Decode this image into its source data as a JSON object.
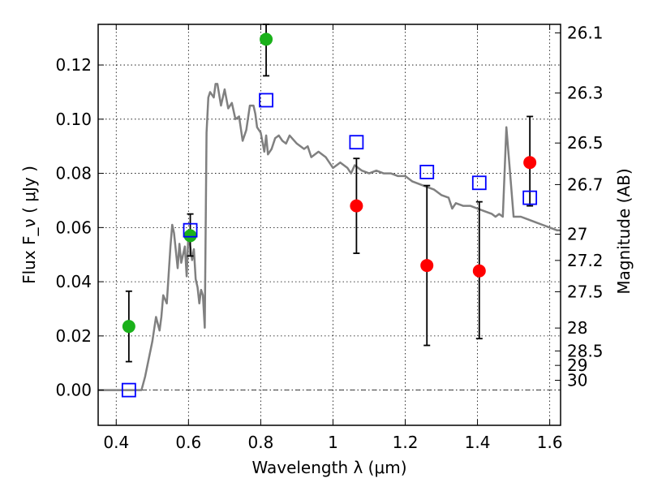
{
  "chart_data": {
    "type": "scatter",
    "title": "",
    "xlabel": "Wavelength  λ (μm)",
    "ylabel_left": "Flux  F_ν  ( μJy )",
    "ylabel_right": "Magnitude (AB)",
    "xlim": [
      0.35,
      1.63
    ],
    "ylim": [
      -0.013,
      0.135
    ],
    "x_ticks": [
      0.4,
      0.6,
      0.8,
      1.0,
      1.2,
      1.4,
      1.6
    ],
    "x_tick_labels": [
      "0.4",
      "0.6",
      "0.8",
      "1",
      "1.2",
      "1.4",
      "1.6"
    ],
    "y_ticks": [
      0.0,
      0.02,
      0.04,
      0.06,
      0.08,
      0.1,
      0.12
    ],
    "y_tick_labels": [
      "0.00",
      "0.02",
      "0.04",
      "0.06",
      "0.08",
      "0.10",
      "0.12"
    ],
    "right_ticks": [
      {
        "mag": 26.1,
        "label": "26.1"
      },
      {
        "mag": 26.3,
        "label": "26.3"
      },
      {
        "mag": 26.5,
        "label": "26.5"
      },
      {
        "mag": 26.7,
        "label": "26.7"
      },
      {
        "mag": 27.0,
        "label": "27"
      },
      {
        "mag": 27.2,
        "label": "27.2"
      },
      {
        "mag": 27.5,
        "label": "27.5"
      },
      {
        "mag": 28.0,
        "label": "28"
      },
      {
        "mag": 28.5,
        "label": "28.5"
      },
      {
        "mag": 29.0,
        "label": "29"
      },
      {
        "mag": 30.0,
        "label": "30"
      }
    ],
    "grid": true,
    "colors": {
      "model": "#808080",
      "green": "#1ab11a",
      "red": "#ff0000",
      "blue": "#0000ff",
      "errorbar": "#000000",
      "zeroline": "#000000"
    },
    "series": [
      {
        "kind": "line",
        "x": [
          0.35,
          0.47,
          0.48,
          0.5,
          0.51,
          0.52,
          0.525,
          0.53,
          0.54,
          0.55,
          0.555,
          0.56,
          0.57,
          0.575,
          0.58,
          0.59,
          0.595,
          0.6,
          0.61,
          0.615,
          0.62,
          0.625,
          0.63,
          0.635,
          0.64,
          0.645,
          0.65,
          0.655,
          0.66,
          0.67,
          0.675,
          0.68,
          0.69,
          0.7,
          0.71,
          0.72,
          0.73,
          0.74,
          0.75,
          0.76,
          0.77,
          0.78,
          0.785,
          0.79,
          0.8,
          0.81,
          0.815,
          0.82,
          0.83,
          0.84,
          0.85,
          0.86,
          0.87,
          0.88,
          0.9,
          0.92,
          0.93,
          0.94,
          0.96,
          0.98,
          1.0,
          1.01,
          1.02,
          1.04,
          1.05,
          1.06,
          1.08,
          1.1,
          1.12,
          1.14,
          1.16,
          1.18,
          1.2,
          1.22,
          1.24,
          1.26,
          1.28,
          1.3,
          1.32,
          1.33,
          1.34,
          1.36,
          1.38,
          1.4,
          1.42,
          1.44,
          1.45,
          1.46,
          1.47,
          1.48,
          1.5,
          1.52,
          1.54,
          1.56,
          1.58,
          1.6,
          1.62,
          1.63
        ],
        "y": [
          0.0,
          0.0,
          0.005,
          0.018,
          0.027,
          0.022,
          0.027,
          0.035,
          0.032,
          0.053,
          0.061,
          0.058,
          0.045,
          0.054,
          0.047,
          0.053,
          0.042,
          0.058,
          0.048,
          0.052,
          0.041,
          0.038,
          0.032,
          0.037,
          0.035,
          0.023,
          0.095,
          0.108,
          0.11,
          0.108,
          0.113,
          0.113,
          0.105,
          0.111,
          0.104,
          0.106,
          0.1,
          0.101,
          0.092,
          0.096,
          0.105,
          0.105,
          0.102,
          0.097,
          0.095,
          0.088,
          0.094,
          0.087,
          0.089,
          0.093,
          0.094,
          0.092,
          0.091,
          0.094,
          0.091,
          0.089,
          0.09,
          0.086,
          0.088,
          0.086,
          0.082,
          0.083,
          0.084,
          0.082,
          0.08,
          0.083,
          0.081,
          0.08,
          0.081,
          0.08,
          0.08,
          0.079,
          0.079,
          0.077,
          0.076,
          0.075,
          0.074,
          0.072,
          0.071,
          0.067,
          0.069,
          0.068,
          0.068,
          0.067,
          0.066,
          0.065,
          0.064,
          0.065,
          0.064,
          0.097,
          0.064,
          0.064,
          0.063,
          0.062,
          0.061,
          0.06,
          0.059,
          0.059
        ]
      },
      {
        "kind": "points",
        "marker": "green-circle",
        "x": [
          0.435,
          0.605,
          0.815
        ],
        "y": [
          0.0235,
          0.057,
          0.1295
        ],
        "yerr_low": [
          0.0105,
          0.0495,
          0.116
        ],
        "yerr_high": [
          0.0365,
          0.065,
          0.135
        ]
      },
      {
        "kind": "points",
        "marker": "red-circle",
        "x": [
          1.065,
          1.26,
          1.405,
          1.545
        ],
        "y": [
          0.068,
          0.046,
          0.044,
          0.084
        ],
        "yerr_low": [
          0.0505,
          0.0165,
          0.019,
          0.068
        ],
        "yerr_high": [
          0.0855,
          0.0755,
          0.0695,
          0.101
        ]
      },
      {
        "kind": "points",
        "marker": "blue-square",
        "x": [
          0.435,
          0.605,
          0.815,
          1.065,
          1.26,
          1.405,
          1.545
        ],
        "y": [
          0.0,
          0.059,
          0.107,
          0.0915,
          0.0805,
          0.0765,
          0.071
        ]
      }
    ]
  }
}
